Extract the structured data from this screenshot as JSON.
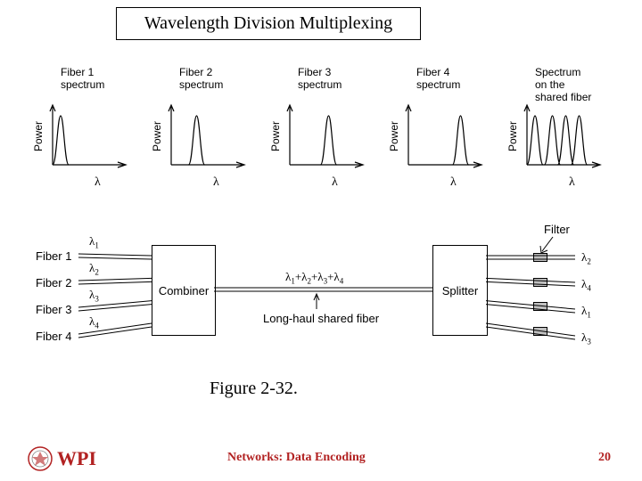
{
  "title": "Wavelength Division Multiplexing",
  "spectra": {
    "ylabel": "Power",
    "xlabel": "λ",
    "panels": [
      {
        "label": "Fiber 1\nspectrum",
        "peaks": [
          0.12
        ]
      },
      {
        "label": "Fiber 2\nspectrum",
        "peaks": [
          0.38
        ]
      },
      {
        "label": "Fiber 3\nspectrum",
        "peaks": [
          0.58
        ]
      },
      {
        "label": "Fiber 4\nspectrum",
        "peaks": [
          0.78
        ]
      },
      {
        "label": "Spectrum\non the\nshared fiber",
        "peaks": [
          0.12,
          0.38,
          0.58,
          0.78
        ]
      }
    ],
    "axis_width": 90,
    "axis_height": 75,
    "stroke": "#000000",
    "peak_height": 55,
    "peak_width": 9
  },
  "schematic": {
    "fibers_in": [
      "Fiber 1",
      "Fiber 2",
      "Fiber 3",
      "Fiber 4"
    ],
    "lambdas_in": [
      "λ1",
      "λ2",
      "λ3",
      "λ4"
    ],
    "combiner_label": "Combiner",
    "splitter_label": "Splitter",
    "shared_label": "λ1+λ2+λ3+λ4",
    "long_haul_label": "Long-haul shared fiber",
    "filter_label": "Filter",
    "lambdas_out": [
      "λ2",
      "λ4",
      "λ1",
      "λ3"
    ]
  },
  "caption": "Figure 2-32.",
  "footer": "Networks: Data Encoding",
  "page": "20",
  "logo_text": "WPI",
  "colors": {
    "accent": "#b22222",
    "stroke": "#000000",
    "bg": "#ffffff"
  }
}
